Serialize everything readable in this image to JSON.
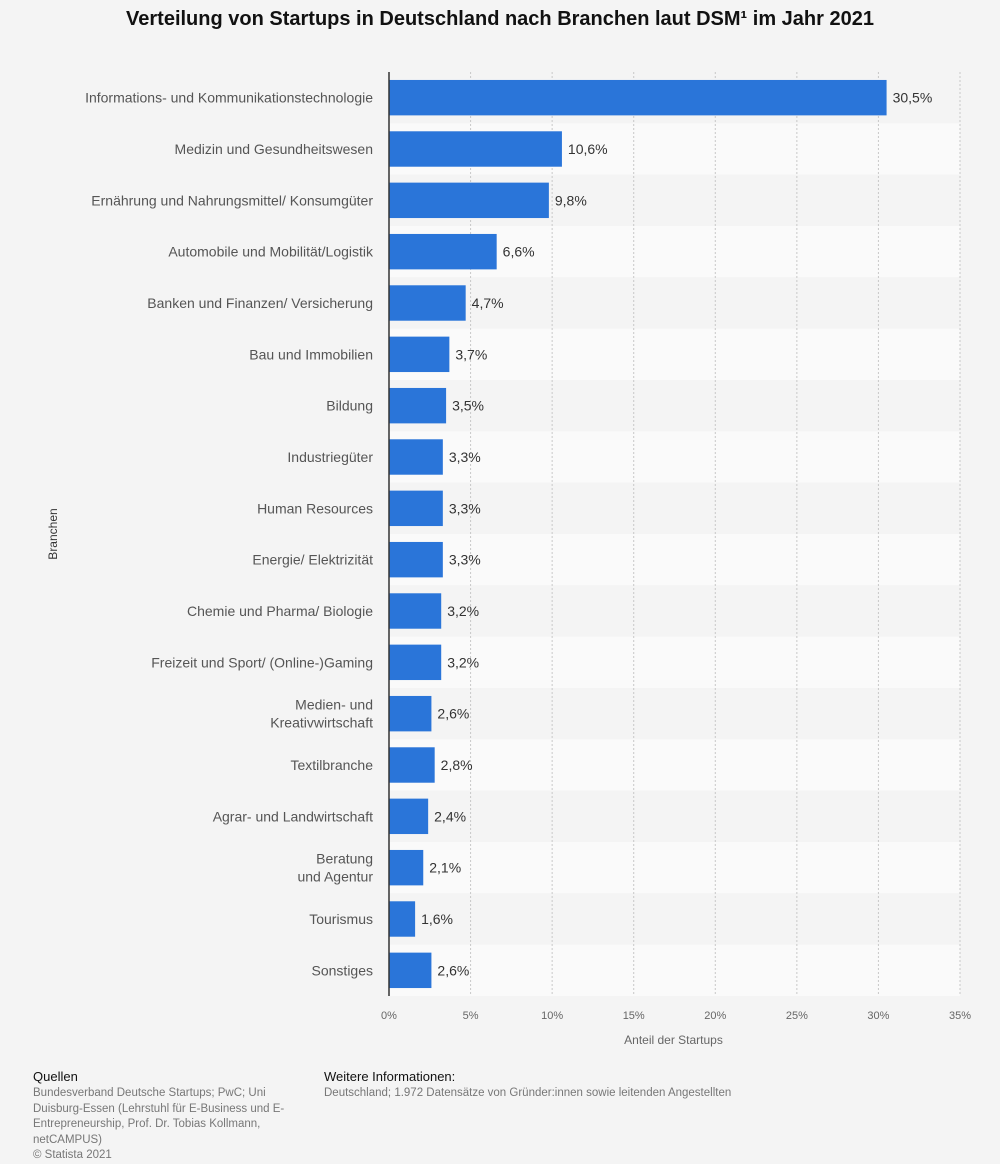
{
  "title": "Verteilung von Startups in Deutschland nach Branchen laut DSM¹ im Jahr 2021",
  "chart_data": {
    "type": "bar",
    "orientation": "horizontal",
    "categories": [
      "Informations- und Kommunikationstechnologie",
      "Medizin und Gesundheitswesen",
      "Ernährung und Nahrungsmittel/ Konsumgüter",
      "Automobile und Mobilität/Logistik",
      "Banken und Finanzen/ Versicherung",
      "Bau und Immobilien",
      "Bildung",
      "Industriegüter",
      "Human Resources",
      "Energie/ Elektrizität",
      "Chemie und Pharma/ Biologie",
      "Freizeit und Sport/ (Online-)Gaming",
      "Medien- und\nKreativwirtschaft",
      "Textilbranche",
      "Agrar- und Landwirtschaft",
      "Beratung\nund Agentur",
      "Tourismus",
      "Sonstiges"
    ],
    "values": [
      30.5,
      10.6,
      9.8,
      6.6,
      4.7,
      3.7,
      3.5,
      3.3,
      3.3,
      3.3,
      3.2,
      3.2,
      2.6,
      2.8,
      2.4,
      2.1,
      1.6,
      2.6
    ],
    "value_labels": [
      "30,5%",
      "10,6%",
      "9,8%",
      "6,6%",
      "4,7%",
      "3,7%",
      "3,5%",
      "3,3%",
      "3,3%",
      "3,3%",
      "3,2%",
      "3,2%",
      "2,6%",
      "2,8%",
      "2,4%",
      "2,1%",
      "1,6%",
      "2,6%"
    ],
    "xlim": [
      0,
      35
    ],
    "xticks": [
      0,
      5,
      10,
      15,
      20,
      25,
      30,
      35
    ],
    "xtick_labels": [
      "0%",
      "5%",
      "10%",
      "15%",
      "20%",
      "25%",
      "30%",
      "35%"
    ],
    "xlabel": "Anteil der Startups",
    "ylabel": "Branchen",
    "grid": true,
    "bar_color": "#2a75d9"
  },
  "footer": {
    "sources_heading": "Quellen",
    "sources_text": "Bundesverband Deutsche Startups; PwC; Uni Duisburg-Essen (Lehrstuhl für E-Business und E-Entrepreneurship, Prof. Dr. Tobias Kollmann, netCAMPUS)\n© Statista 2021",
    "info_heading": "Weitere Informationen:",
    "info_text": "Deutschland; 1.972 Datensätze von Gründer:innen sowie leitenden Angestellten"
  }
}
